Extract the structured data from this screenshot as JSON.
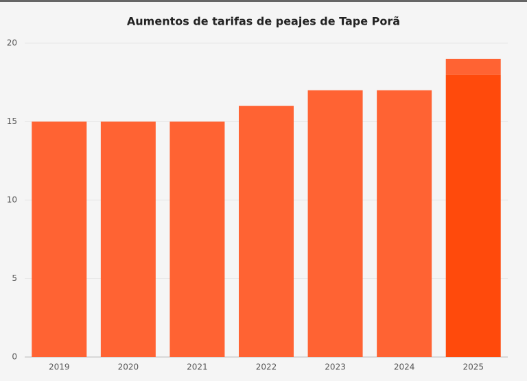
{
  "chart_data": {
    "type": "stacked-bar",
    "title": "Aumentos de tarifas de peajes de Tape Porã",
    "categories": [
      "2019",
      "2020",
      "2021",
      "2022",
      "2023",
      "2024",
      "2025"
    ],
    "series": [
      {
        "color": "#ff4a0c",
        "values": [
          null,
          null,
          null,
          null,
          null,
          null,
          18
        ]
      },
      {
        "color": "#ff6333",
        "values": [
          15,
          15,
          15,
          16,
          17,
          17,
          1
        ]
      }
    ],
    "ylim": [
      0,
      20
    ],
    "yticks": [
      0,
      5,
      10,
      15,
      20
    ],
    "grid": true
  }
}
